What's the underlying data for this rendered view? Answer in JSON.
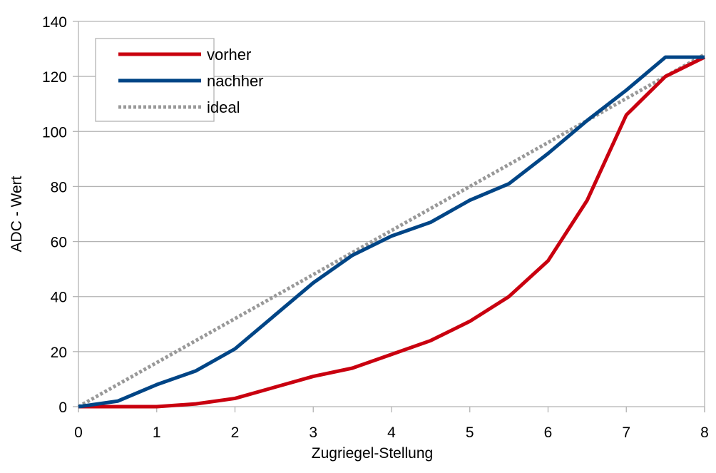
{
  "chart_data": {
    "type": "line",
    "title": "",
    "xlabel": "Zugriegel-Stellung",
    "ylabel": "ADC - Wert",
    "xlim": [
      0,
      8
    ],
    "ylim": [
      0,
      140
    ],
    "xticks": [
      0,
      1,
      2,
      3,
      4,
      5,
      6,
      7,
      8
    ],
    "yticks": [
      0,
      20,
      40,
      60,
      80,
      100,
      120,
      140
    ],
    "grid": "horizontal",
    "legend_position": "top-left",
    "x": [
      0,
      0.5,
      1,
      1.5,
      2,
      2.5,
      3,
      3.5,
      4,
      4.5,
      5,
      5.5,
      6,
      6.5,
      7,
      7.5,
      8
    ],
    "series": [
      {
        "name": "vorher",
        "color": "#c9000f",
        "style": "solid",
        "values": [
          0,
          0,
          0,
          1,
          3,
          7,
          11,
          14,
          19,
          24,
          31,
          40,
          53,
          75,
          106,
          120,
          127
        ]
      },
      {
        "name": "nachher",
        "color": "#004586",
        "style": "solid",
        "values": [
          0,
          2,
          8,
          13,
          21,
          33,
          45,
          55,
          62,
          67,
          75,
          81,
          92,
          104,
          115,
          127,
          127
        ]
      },
      {
        "name": "ideal",
        "color": "#999999",
        "style": "dotted",
        "values": [
          0,
          8,
          16,
          24,
          32,
          40,
          48,
          56,
          64,
          72,
          80,
          88,
          96,
          104,
          112,
          120,
          128
        ]
      }
    ]
  }
}
